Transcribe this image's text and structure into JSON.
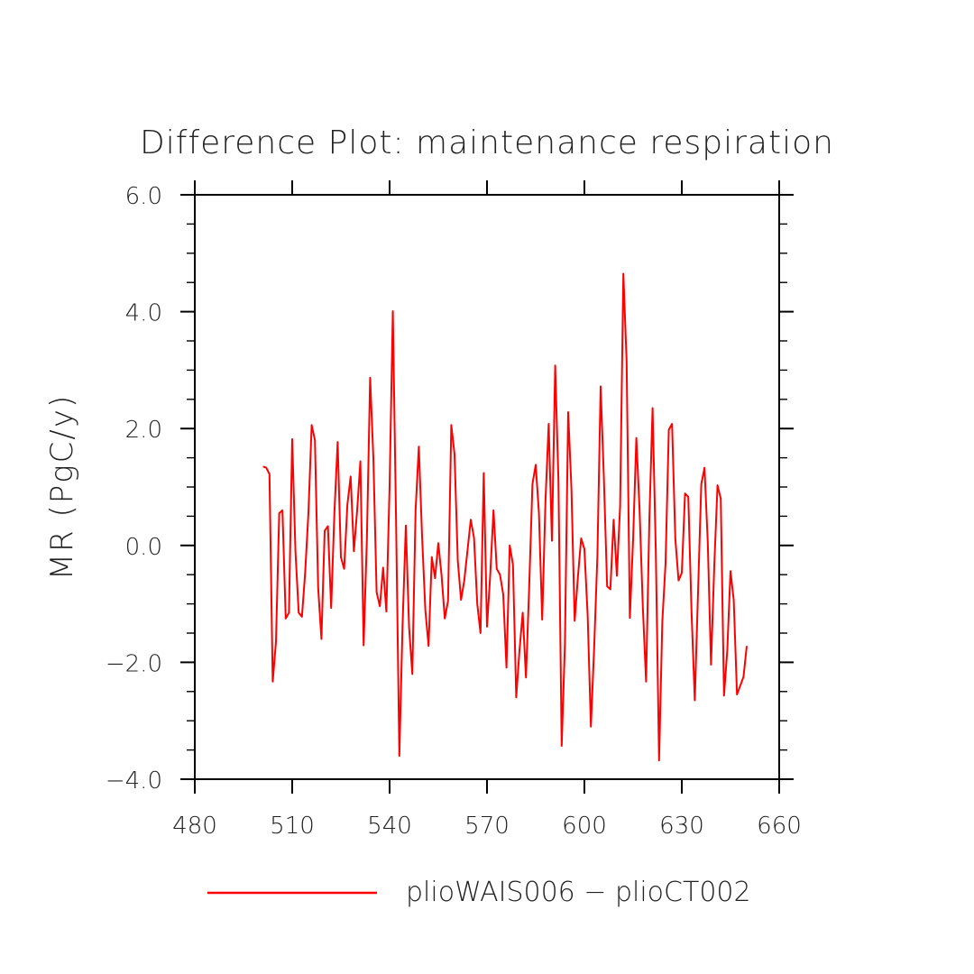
{
  "chart_data": {
    "type": "line",
    "title": "Difference Plot: maintenance respiration",
    "xlabel": "",
    "ylabel": "MR  (PgC/y)",
    "xlim": [
      480,
      660
    ],
    "ylim": [
      -4.0,
      6.0
    ],
    "x_ticks": [
      480,
      510,
      540,
      570,
      600,
      630,
      660
    ],
    "x_tick_labels": [
      "480",
      "510",
      "540",
      "570",
      "600",
      "630",
      "660"
    ],
    "y_ticks": [
      -4,
      -2,
      0,
      2,
      4,
      6
    ],
    "y_tick_labels": [
      "−4.0",
      "−2.0",
      "0.0",
      "2.0",
      "4.0",
      "6.0"
    ],
    "grid": false,
    "legend_position": "bottom",
    "series": [
      {
        "name": "plioWAIS006 − plioCT002",
        "color": "#ff0000",
        "x": [
          501,
          502,
          503,
          504,
          505,
          506,
          507,
          508,
          509,
          510,
          511,
          512,
          513,
          514,
          515,
          516,
          517,
          518,
          519,
          520,
          521,
          522,
          523,
          524,
          525,
          526,
          527,
          528,
          529,
          530,
          531,
          532,
          533,
          534,
          535,
          536,
          537,
          538,
          539,
          540,
          541,
          542,
          543,
          544,
          545,
          546,
          547,
          548,
          549,
          550,
          551,
          552,
          553,
          554,
          555,
          556,
          557,
          558,
          559,
          560,
          561,
          562,
          563,
          564,
          565,
          566,
          567,
          568,
          569,
          570,
          571,
          572,
          573,
          574,
          575,
          576,
          577,
          578,
          579,
          580,
          581,
          582,
          583,
          584,
          585,
          586,
          587,
          588,
          589,
          590,
          591,
          592,
          593,
          594,
          595,
          596,
          597,
          598,
          599,
          600,
          601,
          602,
          603,
          604,
          605,
          606,
          607,
          608,
          609,
          610,
          611,
          612,
          613,
          614,
          615,
          616,
          617,
          618,
          619,
          620,
          621,
          622,
          623,
          624,
          625,
          626,
          627,
          628,
          629,
          630,
          631,
          632,
          633,
          634,
          635,
          636,
          637,
          638,
          639,
          640,
          641,
          642,
          643,
          644,
          645,
          646,
          647,
          648,
          649,
          650
        ],
        "values": [
          1.35,
          1.33,
          1.22,
          -2.33,
          -1.65,
          0.55,
          0.6,
          -1.25,
          -1.15,
          1.82,
          -0.1,
          -1.15,
          -1.22,
          -0.46,
          0.56,
          2.06,
          1.8,
          -0.73,
          -1.6,
          0.25,
          0.33,
          -1.07,
          0.56,
          1.77,
          -0.2,
          -0.4,
          0.7,
          1.18,
          -0.1,
          0.6,
          1.44,
          -1.71,
          0.1,
          2.87,
          1.5,
          -0.8,
          -1.04,
          -0.38,
          -1.13,
          1.02,
          4.01,
          0.39,
          -3.6,
          -1.35,
          0.34,
          -1.4,
          -2.2,
          0.6,
          1.69,
          0.16,
          -1.1,
          -1.72,
          -0.2,
          -0.56,
          0.04,
          -0.51,
          -1.25,
          -0.95,
          2.06,
          1.56,
          -0.26,
          -0.93,
          -0.6,
          -0.08,
          0.44,
          0.13,
          -1.0,
          -1.5,
          1.24,
          -1.39,
          -0.5,
          0.6,
          -0.4,
          -0.5,
          -0.84,
          -2.09,
          0.0,
          -0.33,
          -2.6,
          -1.8,
          -1.15,
          -2.26,
          -0.7,
          1.05,
          1.38,
          0.55,
          -1.27,
          0.75,
          2.08,
          0.08,
          3.08,
          1.12,
          -3.43,
          -1.69,
          2.28,
          0.98,
          -1.29,
          -0.54,
          0.12,
          -0.06,
          -1.19,
          -3.1,
          -1.76,
          -0.18,
          2.72,
          1.15,
          -0.7,
          -0.75,
          0.44,
          -0.52,
          0.67,
          4.65,
          3.15,
          -1.24,
          0.1,
          1.84,
          0.6,
          -1.06,
          -2.33,
          0.43,
          2.35,
          -0.12,
          -3.68,
          -1.3,
          -0.3,
          1.98,
          2.08,
          0.12,
          -0.6,
          -0.47,
          0.89,
          0.83,
          -1.14,
          -2.65,
          -0.8,
          1.05,
          1.33,
          0.05,
          -2.04,
          -0.35,
          1.03,
          0.8,
          -2.57,
          -1.8,
          -0.44,
          -0.94,
          -2.55,
          -2.4,
          -2.25,
          -1.72
        ]
      }
    ]
  }
}
